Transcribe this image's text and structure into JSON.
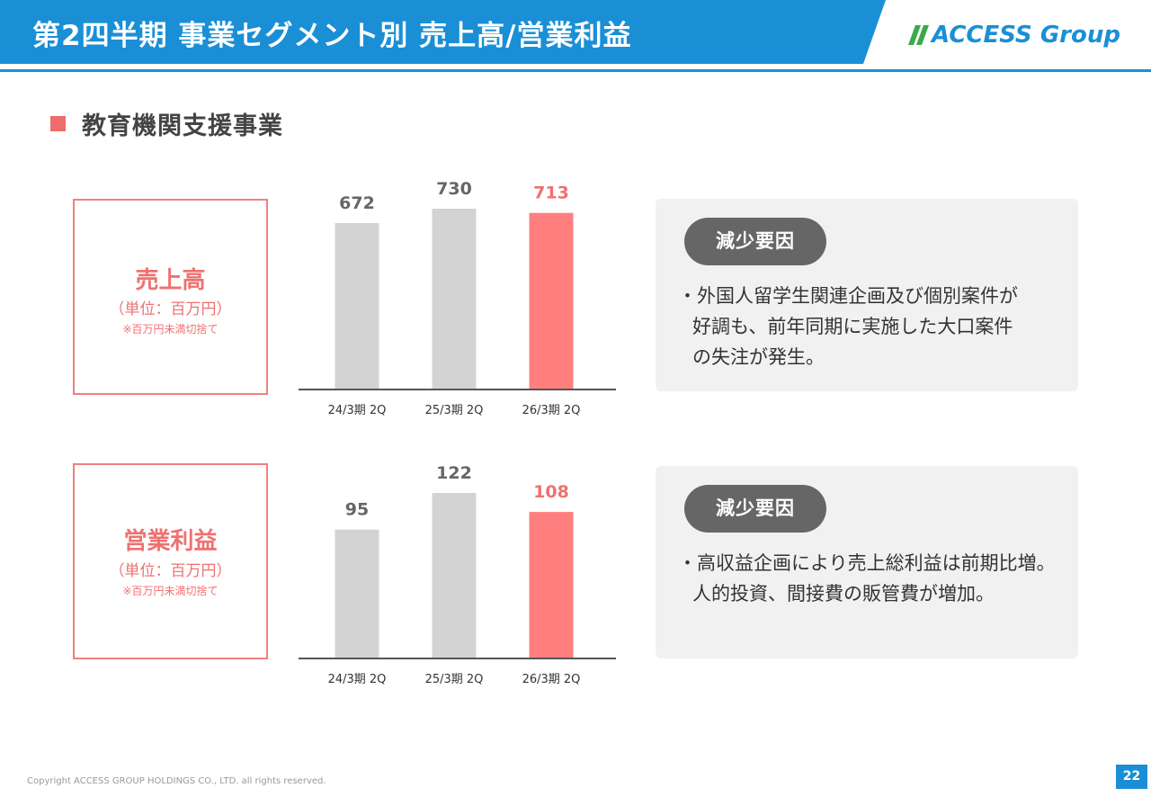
{
  "header": {
    "title": "第2四半期 事業セグメント別 売上高/営業利益",
    "logo_text": "ACCESS Group",
    "color_blue": "#1a8fd6"
  },
  "section": {
    "title": "教育機関支援事業"
  },
  "panels": [
    {
      "label": "売上高",
      "unit": "（単位：百万円）",
      "note": "※百万円未満切捨て",
      "reason": {
        "badge": "減少要因",
        "lines": [
          "・外国人留学生関連企画及び個別案件が",
          "好調も、前年同期に実施した大口案件",
          "の失注が発生。"
        ]
      }
    },
    {
      "label": "営業利益",
      "unit": "（単位：百万円）",
      "note": "※百万円未満切捨て",
      "reason": {
        "badge": "減少要因",
        "lines": [
          "・高収益企画により売上総利益は前期比増。",
          "人的投資、間接費の販管費が増加。"
        ]
      }
    }
  ],
  "chart_data": [
    {
      "type": "bar",
      "categories": [
        "24/3期 2Q",
        "25/3期 2Q",
        "26/3期 2Q"
      ],
      "values": [
        672,
        730,
        713
      ],
      "value_labels": [
        "672",
        "730",
        "713"
      ],
      "ylim": [
        0,
        730
      ],
      "bar_colors": [
        "#d3d3d3",
        "#d3d3d3",
        "#ff7f7f"
      ],
      "label_colors": [
        "#666666",
        "#666666",
        "#f07070"
      ]
    },
    {
      "type": "bar",
      "categories": [
        "24/3期 2Q",
        "25/3期 2Q",
        "26/3期 2Q"
      ],
      "values": [
        95,
        122,
        108
      ],
      "value_labels": [
        "95",
        "122",
        "108"
      ],
      "ylim": [
        0,
        122
      ],
      "bar_colors": [
        "#d3d3d3",
        "#d3d3d3",
        "#ff7f7f"
      ],
      "label_colors": [
        "#666666",
        "#666666",
        "#f07070"
      ]
    }
  ],
  "footer": {
    "copyright": "Copyright ACCESS GROUP HOLDINGS CO., LTD. all rights reserved.",
    "page": "22"
  }
}
